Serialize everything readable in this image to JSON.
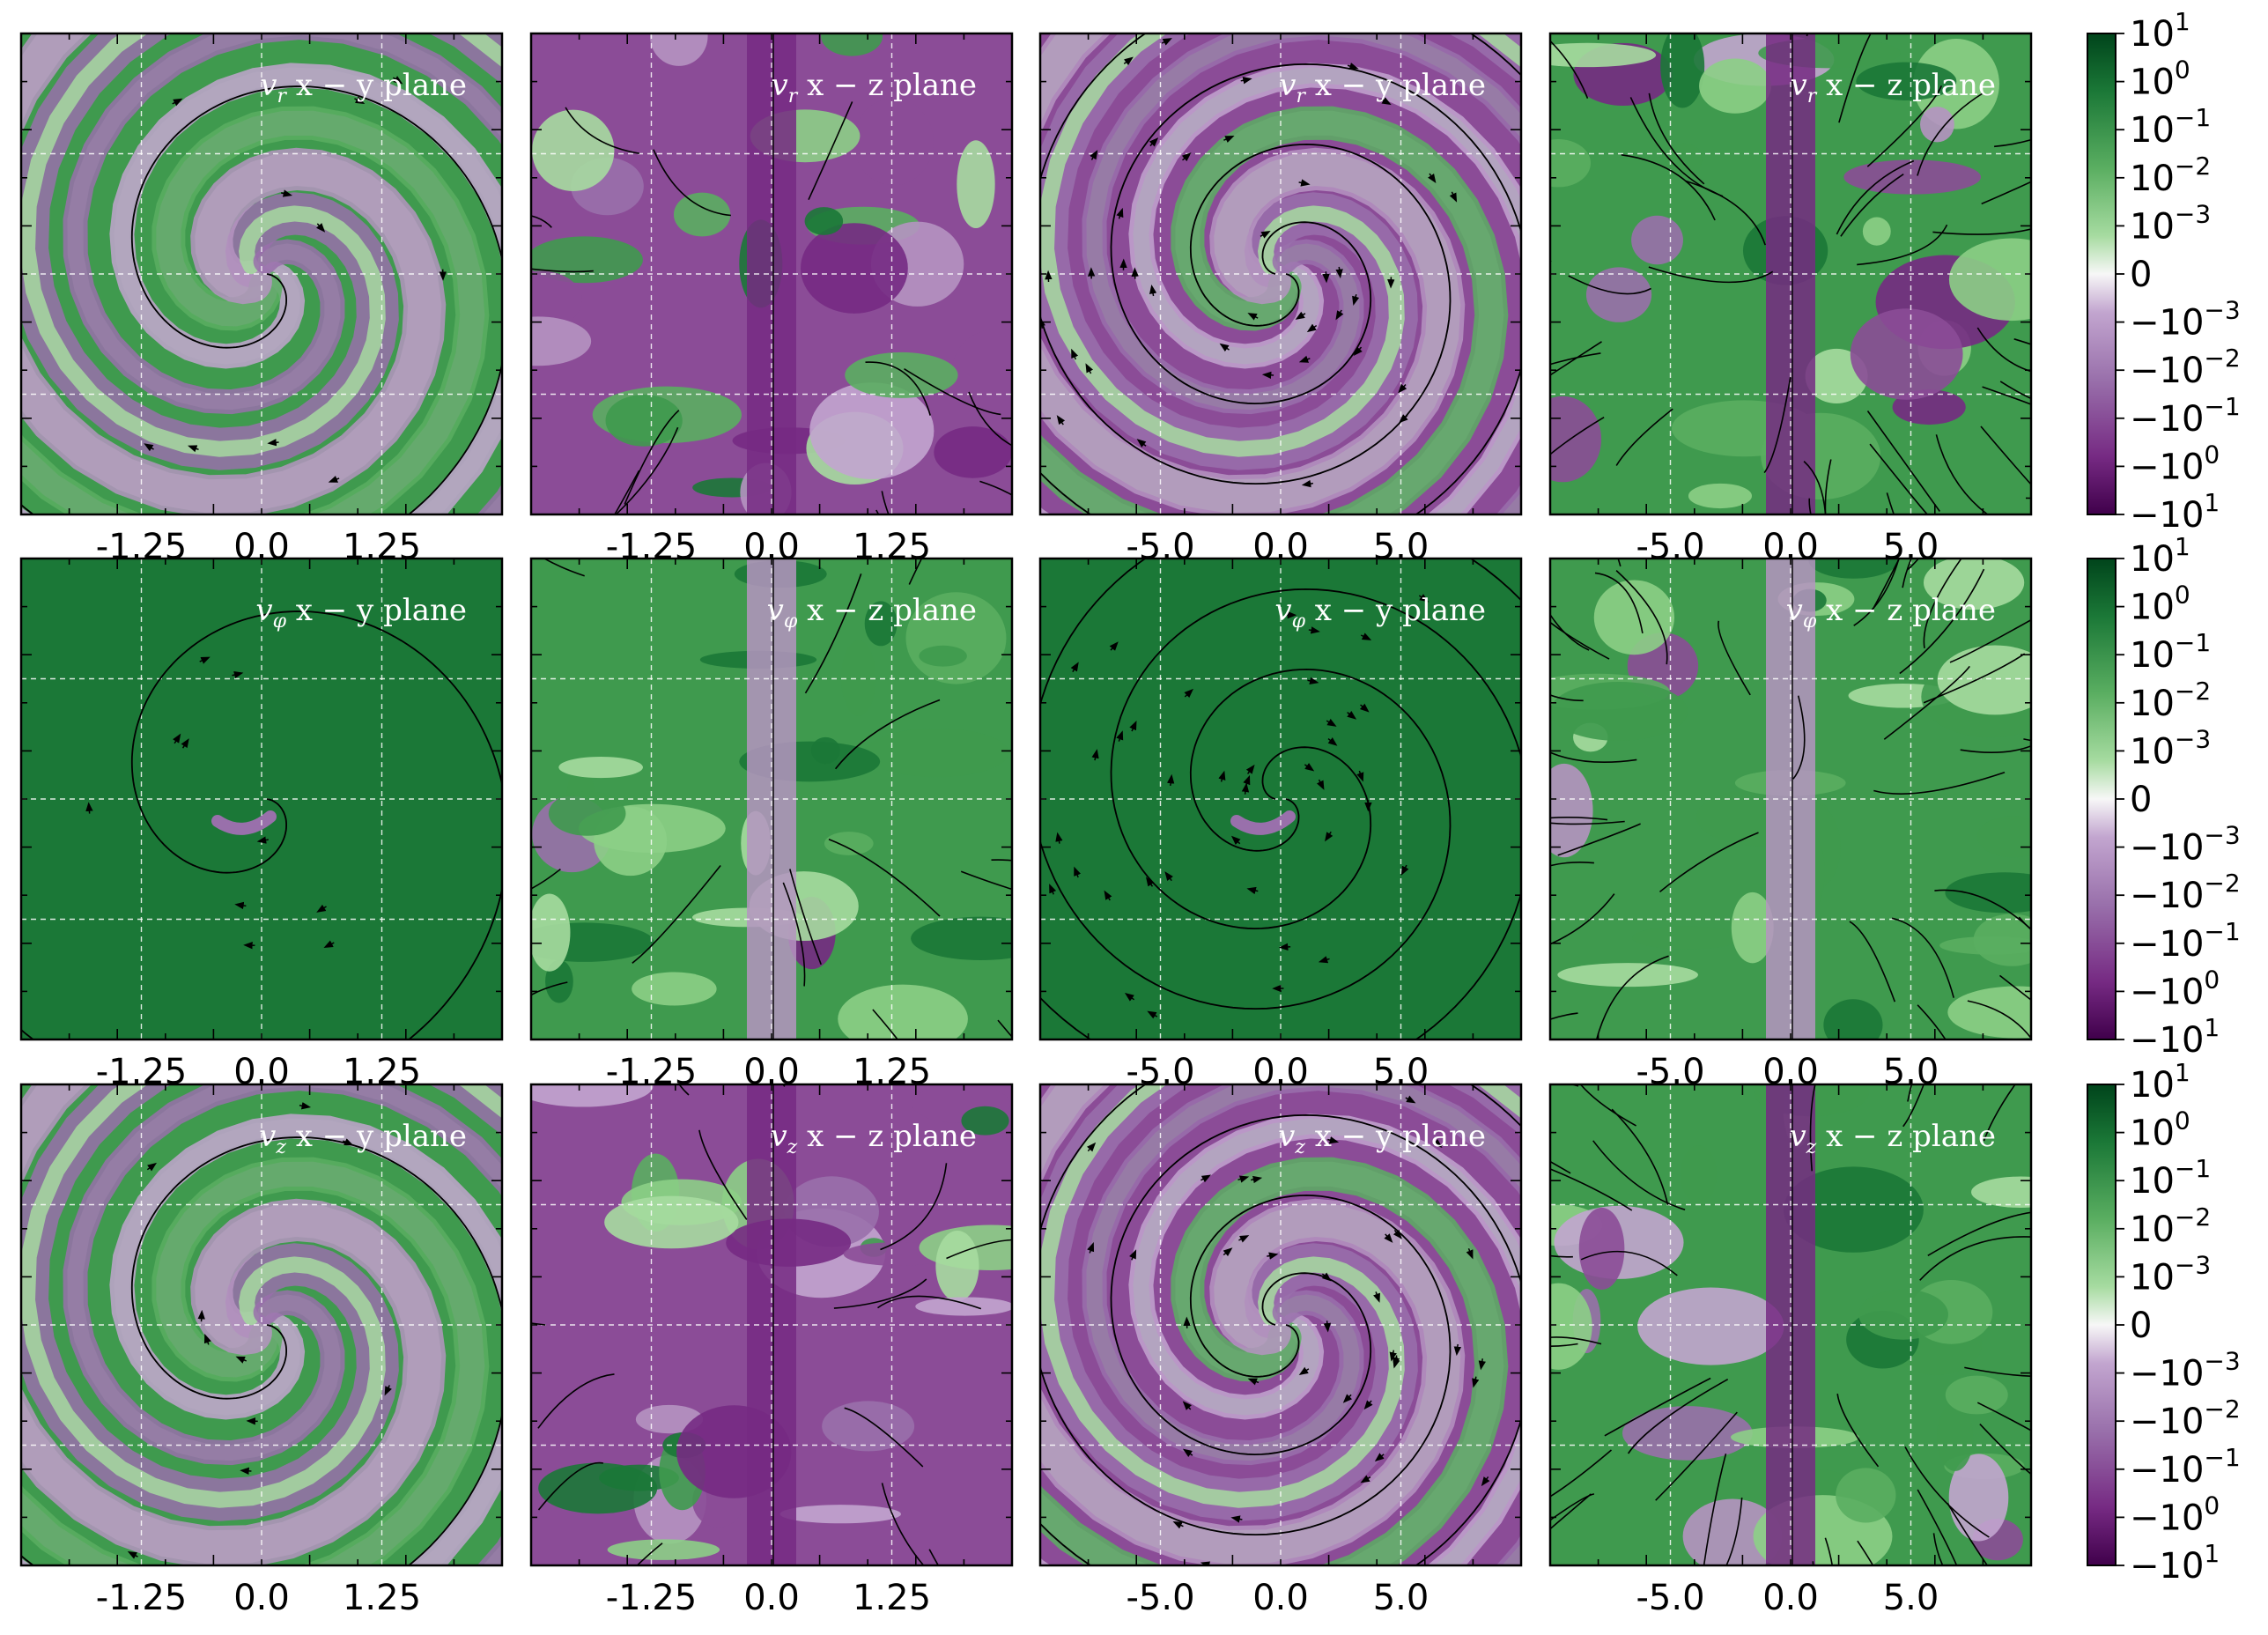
{
  "chart_data": {
    "type": "heatmap",
    "layout": {
      "rows": 3,
      "cols": 4
    },
    "colormap": {
      "name": "PRGn",
      "positive_color": "#00441b",
      "negative_color": "#40004b",
      "zero_color": "#f7f7f7",
      "scale": "symlog"
    },
    "colorbar": {
      "tick_labels": [
        "10^1",
        "10^0",
        "10^-1",
        "10^-2",
        "10^-3",
        "0",
        "-10^-3",
        "-10^-2",
        "-10^-1",
        "-10^0",
        "-10^1"
      ],
      "mantissa": [
        "10",
        "10",
        "10",
        "10",
        "10",
        "0",
        "−10",
        "−10",
        "−10",
        "−10",
        "−10"
      ],
      "exponent": [
        "1",
        "0",
        "−1",
        "−2",
        "−3",
        "",
        "−3",
        "−2",
        "−1",
        "0",
        "1"
      ]
    },
    "x_ticks": {
      "inner": {
        "values": [
          -1.25,
          0.0,
          1.25
        ],
        "labels": [
          "-1.25",
          "0.0",
          "1.25"
        ],
        "xlim": [
          -2.5,
          2.5
        ]
      },
      "outer": {
        "values": [
          -5.0,
          0.0,
          5.0
        ],
        "labels": [
          "-5.0",
          "0.0",
          "5.0"
        ],
        "xlim": [
          -10,
          10
        ]
      }
    },
    "rows": [
      {
        "quantity": "v_r",
        "symbol": "v",
        "subscript": "r"
      },
      {
        "quantity": "v_phi",
        "symbol": "v",
        "subscript": "φ"
      },
      {
        "quantity": "v_z",
        "symbol": "v",
        "subscript": "z"
      }
    ],
    "columns": [
      {
        "plane": "x − y plane",
        "scale": "inner"
      },
      {
        "plane": "x − z plane",
        "scale": "inner"
      },
      {
        "plane": "x − y plane",
        "scale": "outer"
      },
      {
        "plane": "x − z plane",
        "scale": "outer"
      }
    ],
    "panels": [
      {
        "row": 0,
        "col": 0,
        "title": "v_r x − y plane",
        "positive_fraction": 0.55
      },
      {
        "row": 0,
        "col": 1,
        "title": "v_r x − z plane",
        "positive_fraction": 0.45
      },
      {
        "row": 0,
        "col": 2,
        "title": "v_r x − y plane",
        "positive_fraction": 0.5
      },
      {
        "row": 0,
        "col": 3,
        "title": "v_r x − z plane",
        "positive_fraction": 0.6
      },
      {
        "row": 1,
        "col": 0,
        "title": "v_φ x − y plane",
        "positive_fraction": 0.98
      },
      {
        "row": 1,
        "col": 1,
        "title": "v_φ x − z plane",
        "positive_fraction": 0.85
      },
      {
        "row": 1,
        "col": 2,
        "title": "v_φ x − y plane",
        "positive_fraction": 1.0
      },
      {
        "row": 1,
        "col": 3,
        "title": "v_φ x − z plane",
        "positive_fraction": 0.9
      },
      {
        "row": 2,
        "col": 0,
        "title": "v_z x − y plane",
        "positive_fraction": 0.55
      },
      {
        "row": 2,
        "col": 1,
        "title": "v_z x − z plane",
        "positive_fraction": 0.45
      },
      {
        "row": 2,
        "col": 2,
        "title": "v_z x − y plane",
        "positive_fraction": 0.5
      },
      {
        "row": 2,
        "col": 3,
        "title": "v_z x − z plane",
        "positive_fraction": 0.55
      }
    ],
    "grid": true,
    "streamlines": true
  }
}
